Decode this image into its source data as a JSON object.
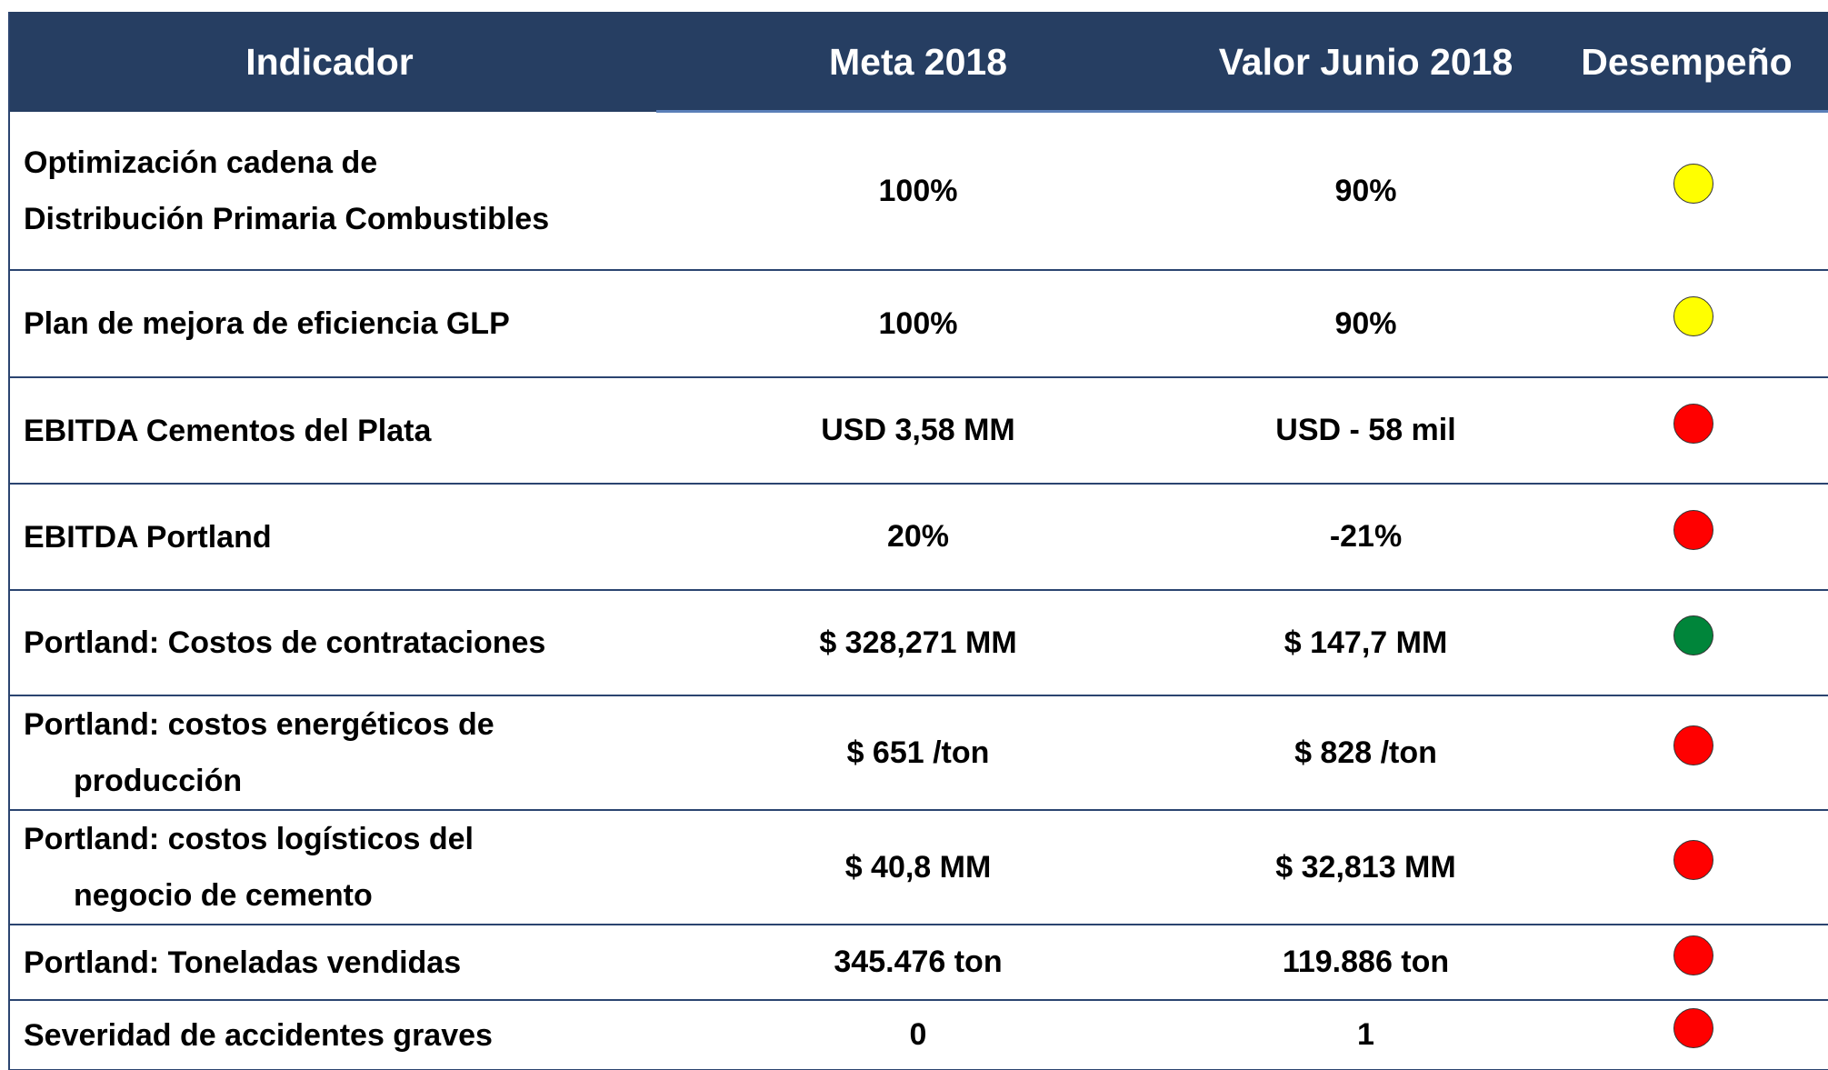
{
  "table": {
    "header": [
      "Indicador",
      "Meta 2018",
      "Valor Junio 2018",
      "Desempeño"
    ],
    "rows": [
      {
        "indicador": [
          "Optimización cadena de",
          "Distribución Primaria Combustibles"
        ],
        "meta": "100%",
        "valor": "90%",
        "color": "#ffff00"
      },
      {
        "indicador": [
          "Plan de mejora de eficiencia GLP"
        ],
        "meta": "100%",
        "valor": "90%",
        "color": "#ffff00"
      },
      {
        "indicador": [
          "EBITDA Cementos del Plata"
        ],
        "meta": "USD 3,58 MM",
        "valor": "USD - 58 mil",
        "color": "#ff0000"
      },
      {
        "indicador": [
          "EBITDA Portland"
        ],
        "meta": "20%",
        "valor": "-21%",
        "color": "#ff0000"
      },
      {
        "indicador": [
          "Portland: Costos de contrataciones"
        ],
        "meta": "$ 328,271 MM",
        "valor": "$ 147,7 MM",
        "color": "#00853a"
      },
      {
        "indicador": [
          "Portland: costos energéticos de",
          "producción"
        ],
        "meta": "$ 651 /ton",
        "valor": "$ 828 /ton",
        "color": "#ff0000"
      },
      {
        "indicador": [
          "Portland: costos logísticos del",
          "negocio de cemento"
        ],
        "meta": "$ 40,8 MM",
        "valor": "$ 32,813 MM",
        "color": "#ff0000"
      },
      {
        "indicador": [
          "Portland: Toneladas vendidas"
        ],
        "meta": "345.476 ton",
        "valor": "119.886 ton",
        "color": "#ff0000"
      },
      {
        "indicador": [
          "Severidad de accidentes graves"
        ],
        "meta": "0",
        "valor": "1",
        "color": "#ff0000"
      }
    ]
  }
}
